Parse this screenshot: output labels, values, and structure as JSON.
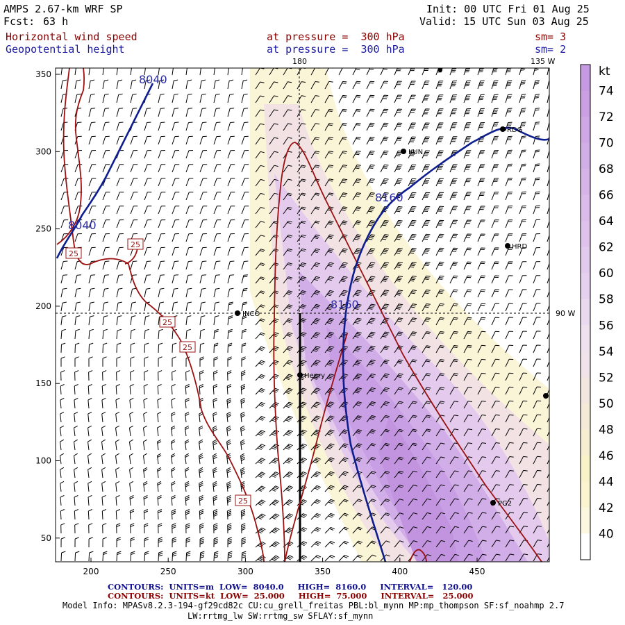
{
  "header": {
    "model_title": "AMPS 2.67-km WRF SP",
    "fcst_label": "Fcst:",
    "fcst_value": "63 h",
    "init": "Init: 00 UTC Fri 01 Aug 25",
    "valid": "Valid: 15 UTC Sun 03 Aug 25",
    "field1_name": "Horizontal wind speed",
    "field1_level": "at pressure =  300 hPa",
    "field1_sm": "sm= 3",
    "field2_name": "Geopotential height",
    "field2_level": "at pressure =  300 hPa",
    "field2_sm": "sm= 2"
  },
  "map": {
    "top_labels": [
      "180",
      "135 W"
    ],
    "right_label": "90 W",
    "x_ticks": [
      "200",
      "250",
      "300",
      "350",
      "400",
      "450"
    ],
    "y_ticks": [
      "350",
      "300",
      "250",
      "200",
      "150",
      "100",
      "50"
    ],
    "stations": [
      {
        "name": "KUN"
      },
      {
        "name": "RDG"
      },
      {
        "name": "HRD"
      },
      {
        "name": "INCO"
      },
      {
        "name": "Henry"
      },
      {
        "name": "PG2"
      }
    ],
    "height_contour_labels": [
      "8040",
      "8040",
      "8160",
      "8160"
    ],
    "speed_contour_labels": [
      "25",
      "25",
      "25",
      "25",
      "25"
    ]
  },
  "colorbar": {
    "unit": "kt",
    "ticks": [
      "74",
      "72",
      "70",
      "68",
      "66",
      "64",
      "62",
      "60",
      "58",
      "56",
      "54",
      "52",
      "50",
      "48",
      "46",
      "44",
      "42",
      "40"
    ],
    "colors": [
      "#c69ae0",
      "#caa0e2",
      "#cea7e4",
      "#d2aee6",
      "#d6b4e8",
      "#dabbea",
      "#dec2ec",
      "#e2c9ee",
      "#e6d0f0",
      "#eadaf0",
      "#eee2ef",
      "#f0e4ea",
      "#f2e6e0",
      "#f4ead8",
      "#f6eed0",
      "#f8f2c8",
      "#faf4d0",
      "#fcf8e0",
      "#ffffff"
    ]
  },
  "footer": {
    "line1": "CONTOURS:  UNITS=m  LOW=  8040.0     HIGH=  8160.0     INTERVAL=   120.00",
    "line2": "CONTOURS:  UNITS=kt  LOW=  25.000     HIGH=  75.000     INTERVAL=   25.000",
    "model_info": "Model Info: MPASv8.2.3-194-gf29cd82c CU:cu_grell_freitas PBL:bl_mynn MP:mp_thompson SF:sf_noahmp 2.7",
    "model_info2": "LW:rrtmg_lw SW:rrtmg_sw SFLAY:sf_mynn"
  }
}
